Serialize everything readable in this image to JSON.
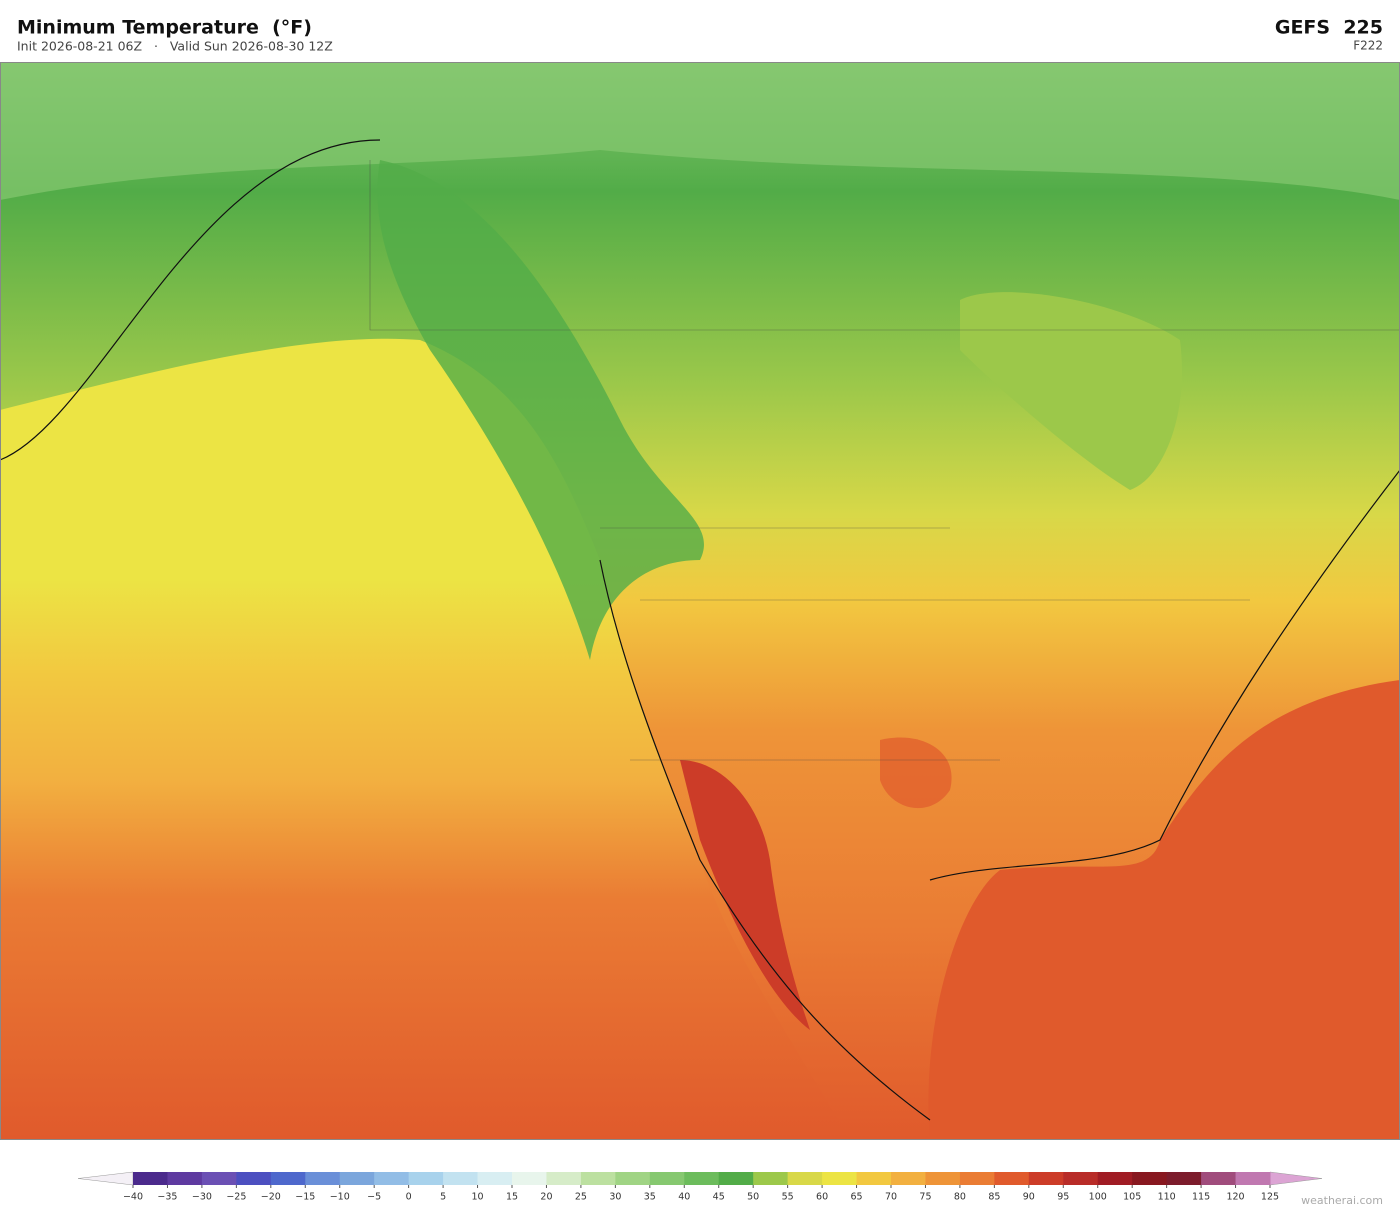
{
  "header": {
    "title": "Minimum Temperature  (°F)",
    "subtitle": "Init 2026-08-21 06Z   ·   Valid Sun 2026-08-30 12Z",
    "model": "GEFS  225",
    "forecast_hour": "F222"
  },
  "colorbar": {
    "labels": [
      "−40",
      "−35",
      "−30",
      "−25",
      "−20",
      "−15",
      "−10",
      "−5",
      "0",
      "5",
      "10",
      "15",
      "20",
      "25",
      "30",
      "35",
      "40",
      "45",
      "50",
      "55",
      "60",
      "65",
      "70",
      "75",
      "80",
      "85",
      "90",
      "95",
      "100",
      "105",
      "110",
      "115",
      "120",
      "125"
    ],
    "under_color": "#f4f0f6",
    "over_color": "#dca4d4",
    "colors": [
      "#4b2a8c",
      "#5e3aa0",
      "#6b50b4",
      "#4c4fc0",
      "#4e68cc",
      "#6a8fd8",
      "#7ba6dc",
      "#92bde6",
      "#a8d2ec",
      "#c2e2f0",
      "#d8eef2",
      "#e8f5ec",
      "#d6ecc8",
      "#bce0a0",
      "#a0d484",
      "#86c870",
      "#6cbc5c",
      "#52ac48",
      "#9cc84a",
      "#d8d848",
      "#ece444",
      "#f2c840",
      "#f2b040",
      "#ee9438",
      "#ea7c34",
      "#e05a2c",
      "#cc3c28",
      "#b82c28",
      "#a01c24",
      "#881820",
      "#7c1c2c",
      "#a04c7c",
      "#c078b0"
    ]
  },
  "footer": {
    "watermark": "weatherai.com"
  }
}
